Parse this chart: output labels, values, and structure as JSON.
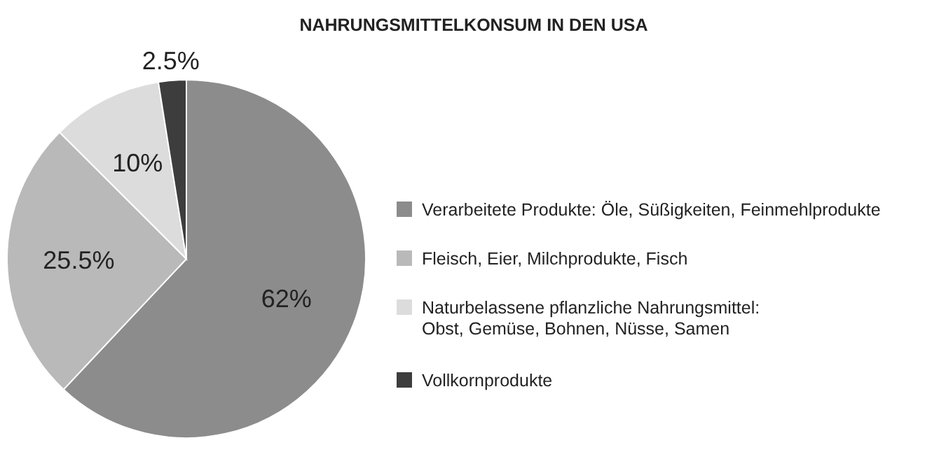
{
  "chart_data": {
    "type": "pie",
    "title": "NAHRUNGSMITTELKONSUM IN DEN USA",
    "categories": [
      "Verarbeitete Produkte: Öle, Süßigkeiten, Feinmehlprodukte",
      "Fleisch, Eier, Milchprodukte, Fisch",
      "Naturbelassene pflanzliche Nahrungsmittel: Obst, Gemüse, Bohnen, Nüsse, Samen",
      "Vollkornprodukte"
    ],
    "values": [
      62,
      25.5,
      10,
      2.5
    ],
    "colors": [
      "#8c8c8c",
      "#b9b9b9",
      "#dcdcdc",
      "#3d3d3d"
    ],
    "value_labels": [
      "62%",
      "25.5%",
      "10%",
      "2.5%"
    ],
    "legend": "right"
  }
}
